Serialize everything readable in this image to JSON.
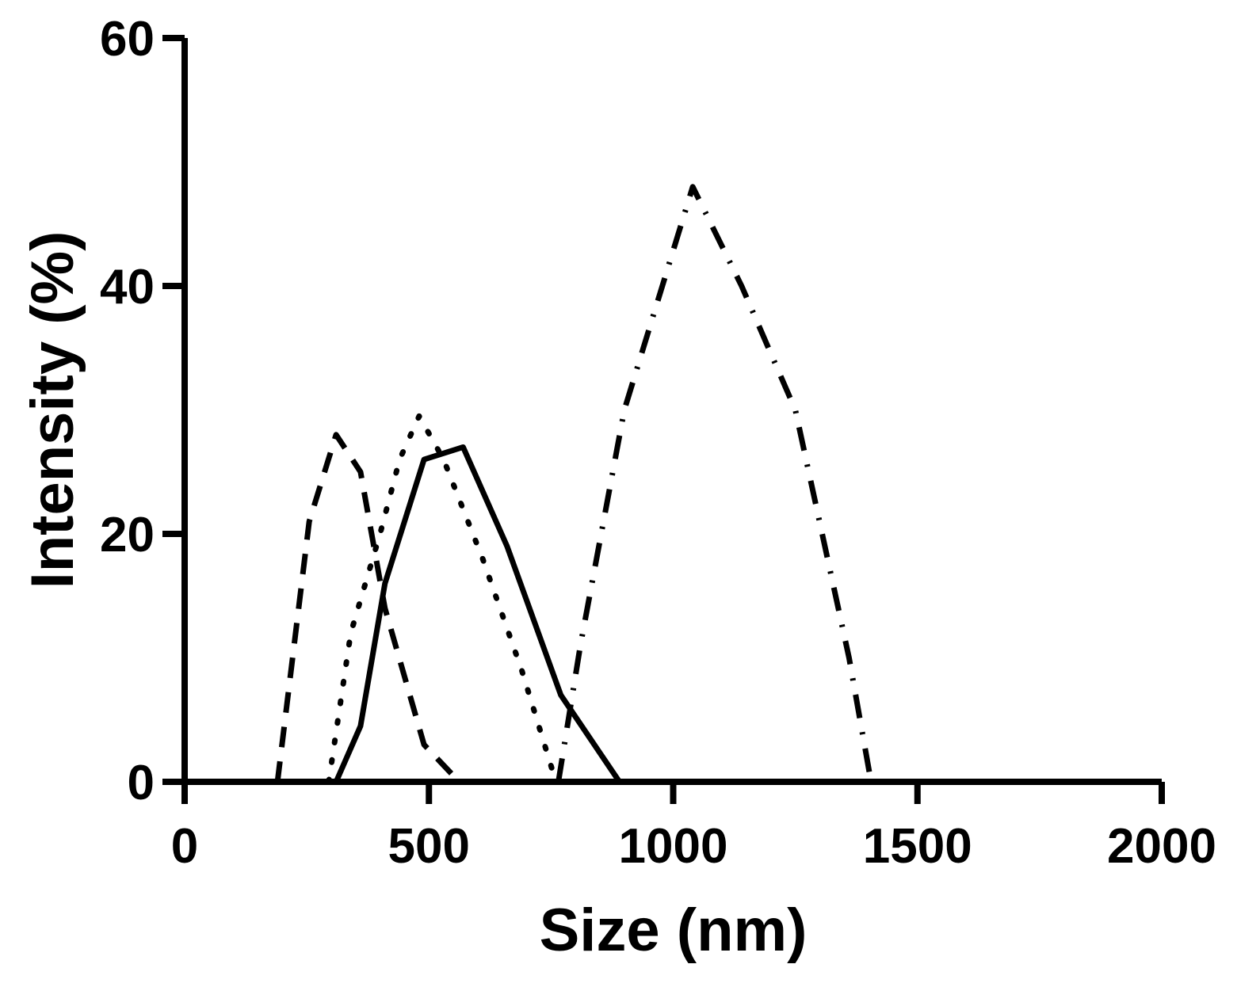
{
  "chart_data": {
    "type": "line",
    "title": "",
    "xlabel": "Size (nm)",
    "ylabel": "Intensity (%)",
    "xlim": [
      0,
      2000
    ],
    "ylim": [
      0,
      60
    ],
    "xticks": [
      "0",
      "500",
      "1000",
      "1500",
      "2000"
    ],
    "yticks": [
      "0",
      "20",
      "40",
      "60"
    ],
    "grid": false,
    "legend": "none",
    "line_color": "#000000",
    "series": [
      {
        "style": "dashed",
        "points": [
          [
            190,
            0
          ],
          [
            255,
            21
          ],
          [
            310,
            28
          ],
          [
            360,
            25
          ],
          [
            410,
            14
          ],
          [
            490,
            3
          ],
          [
            550,
            0.5
          ]
        ]
      },
      {
        "style": "dotted",
        "points": [
          [
            295,
            0
          ],
          [
            340,
            12
          ],
          [
            400,
            20
          ],
          [
            440,
            26
          ],
          [
            480,
            29.5
          ],
          [
            530,
            26
          ],
          [
            610,
            18
          ],
          [
            690,
            9
          ],
          [
            760,
            0
          ]
        ]
      },
      {
        "style": "solid",
        "points": [
          [
            310,
            0
          ],
          [
            360,
            4.5
          ],
          [
            410,
            16
          ],
          [
            490,
            26
          ],
          [
            570,
            27
          ],
          [
            660,
            19
          ],
          [
            770,
            7
          ],
          [
            890,
            0
          ]
        ]
      },
      {
        "style": "dash-dot",
        "points": [
          [
            765,
            0
          ],
          [
            810,
            11
          ],
          [
            900,
            30
          ],
          [
            1040,
            48
          ],
          [
            1140,
            40
          ],
          [
            1250,
            30
          ],
          [
            1360,
            10
          ],
          [
            1405,
            0
          ]
        ]
      }
    ]
  }
}
